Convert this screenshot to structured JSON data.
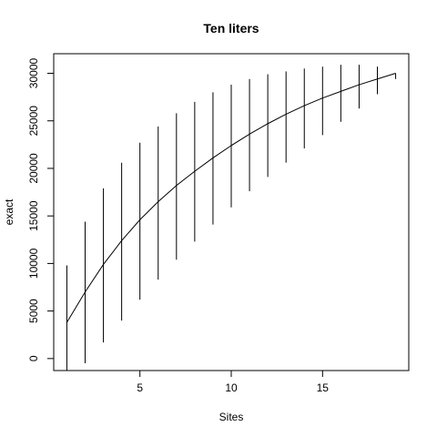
{
  "chart_data": {
    "type": "line",
    "title": "Ten liters",
    "xlabel": "Sites",
    "ylabel": "exact",
    "xlim": [
      0.28,
      19.72
    ],
    "ylim": [
      -1260,
      32060
    ],
    "x_ticks": [
      5,
      10,
      15
    ],
    "y_ticks": [
      0,
      5000,
      10000,
      15000,
      20000,
      25000,
      30000
    ],
    "grid": false,
    "series": [
      {
        "x": [
          1,
          2,
          3,
          4,
          5,
          6,
          7,
          8,
          9,
          10,
          11,
          12,
          13,
          14,
          15,
          16,
          17,
          18,
          19
        ],
        "values": [
          3800,
          7000,
          9900,
          12400,
          14600,
          16500,
          18200,
          19700,
          21100,
          22400,
          23600,
          24700,
          25700,
          26600,
          27400,
          28100,
          28800,
          29400,
          30000
        ],
        "lower": [
          -1300,
          -500,
          1700,
          4000,
          6200,
          8300,
          10400,
          12300,
          14100,
          15900,
          17600,
          19100,
          20600,
          22100,
          23500,
          24900,
          26300,
          27800,
          29400
        ],
        "upper": [
          9800,
          14400,
          17900,
          20600,
          22700,
          24400,
          25800,
          27000,
          28000,
          28800,
          29400,
          29900,
          30200,
          30500,
          30700,
          30900,
          30900,
          30700,
          30000
        ]
      }
    ]
  }
}
